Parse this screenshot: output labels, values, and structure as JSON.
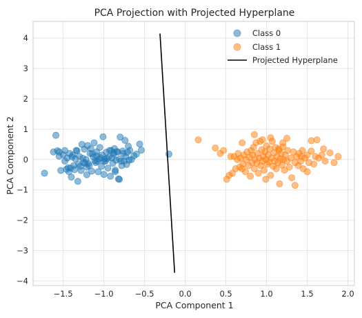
{
  "chart_data": {
    "type": "scatter",
    "title": "PCA Projection with Projected Hyperplane",
    "xlabel": "PCA Component 1",
    "ylabel": "PCA Component 2",
    "xlim": [
      -1.87,
      2.08
    ],
    "ylim": [
      -4.15,
      4.55
    ],
    "xticks": [
      -1.5,
      -1.0,
      -0.5,
      0.0,
      0.5,
      1.0,
      1.5,
      2.0
    ],
    "yticks": [
      -4,
      -3,
      -2,
      -1,
      0,
      1,
      2,
      3,
      4
    ],
    "xtick_labels": [
      "−1.5",
      "−1.0",
      "−0.5",
      "0.0",
      "0.5",
      "1.0",
      "1.5",
      "2.0"
    ],
    "ytick_labels": [
      "−4",
      "−3",
      "−2",
      "−1",
      "0",
      "1",
      "2",
      "3",
      "4"
    ],
    "grid": true,
    "legend_position": "top-right",
    "series": [
      {
        "name": "Class 0",
        "kind": "scatter",
        "color": "#1f77b4",
        "alpha": 0.5,
        "points": [
          [
            -1.73,
            -0.45
          ],
          [
            -1.62,
            0.25
          ],
          [
            -1.59,
            0.8
          ],
          [
            -1.57,
            0.29
          ],
          [
            -1.55,
            0.11
          ],
          [
            -1.53,
            -0.36
          ],
          [
            -1.5,
            0.16
          ],
          [
            -1.48,
            -0.05
          ],
          [
            -1.46,
            -0.32
          ],
          [
            -1.45,
            0.05
          ],
          [
            -1.43,
            -0.4
          ],
          [
            -1.42,
            0.2
          ],
          [
            -1.4,
            -0.58
          ],
          [
            -1.38,
            0.15
          ],
          [
            -1.37,
            -0.2
          ],
          [
            -1.35,
            0.02
          ],
          [
            -1.33,
            0.29
          ],
          [
            -1.32,
            -0.72
          ],
          [
            -1.3,
            0.1
          ],
          [
            -1.28,
            -0.36
          ],
          [
            -1.27,
            0.5
          ],
          [
            -1.25,
            -0.1
          ],
          [
            -1.24,
            0.34
          ],
          [
            -1.22,
            0.0
          ],
          [
            -1.21,
            -0.5
          ],
          [
            -1.2,
            0.46
          ],
          [
            -1.18,
            -0.2
          ],
          [
            -1.17,
            0.2
          ],
          [
            -1.15,
            -0.38
          ],
          [
            -1.13,
            0.09
          ],
          [
            -1.12,
            0.55
          ],
          [
            -1.1,
            -0.1
          ],
          [
            -1.09,
            0.25
          ],
          [
            -1.07,
            -0.4
          ],
          [
            -1.06,
            0.02
          ],
          [
            -1.05,
            0.4
          ],
          [
            -1.03,
            -0.22
          ],
          [
            -1.02,
            0.15
          ],
          [
            -1.0,
            -0.49
          ],
          [
            -0.98,
            -0.05
          ],
          [
            -0.97,
            0.24
          ],
          [
            -0.95,
            -0.28
          ],
          [
            -0.94,
            0.08
          ],
          [
            -0.92,
            -0.55
          ],
          [
            -0.91,
            0.3
          ],
          [
            -0.89,
            -0.12
          ],
          [
            -0.88,
            0.18
          ],
          [
            -0.86,
            -0.35
          ],
          [
            -0.85,
            -0.02
          ],
          [
            -0.83,
            0.25
          ],
          [
            -0.82,
            -0.64
          ],
          [
            -0.81,
            0.02
          ],
          [
            -0.8,
            0.74
          ],
          [
            -0.78,
            -0.2
          ],
          [
            -0.77,
            0.28
          ],
          [
            -0.75,
            -0.05
          ],
          [
            -0.74,
            0.63
          ],
          [
            -0.73,
            0.1
          ],
          [
            -0.72,
            -0.16
          ],
          [
            -0.71,
            0.24
          ],
          [
            -0.7,
            0.44
          ],
          [
            -0.69,
            -0.02
          ],
          [
            -0.68,
            0.3
          ],
          [
            -0.66,
            0.0
          ],
          [
            -0.63,
            0.12
          ],
          [
            -0.6,
            0.18
          ],
          [
            -0.56,
            0.51
          ],
          [
            -0.54,
            0.31
          ],
          [
            -1.55,
            0.25
          ],
          [
            -1.48,
            0.3
          ],
          [
            -1.41,
            -0.28
          ],
          [
            -1.36,
            -0.33
          ],
          [
            -1.29,
            -0.22
          ],
          [
            -1.26,
            0.04
          ],
          [
            -1.19,
            -0.13
          ],
          [
            -1.16,
            0.36
          ],
          [
            -1.11,
            -0.04
          ],
          [
            -1.04,
            0.06
          ],
          [
            -1.01,
            0.75
          ],
          [
            -0.96,
            0.03
          ],
          [
            -0.9,
            0.05
          ],
          [
            -0.87,
            0.36
          ],
          [
            -0.84,
            0.26
          ],
          [
            -0.79,
            -0.05
          ],
          [
            -0.76,
            0.2
          ],
          [
            -1.44,
            -0.27
          ],
          [
            -1.34,
            0.3
          ],
          [
            -1.23,
            -0.12
          ],
          [
            -1.14,
            0.19
          ],
          [
            -1.08,
            -0.05
          ],
          [
            -0.99,
            0.02
          ],
          [
            -0.93,
            0.3
          ],
          [
            -0.86,
            -0.4
          ],
          [
            -1.31,
            -0.15
          ],
          [
            -1.21,
            -0.25
          ],
          [
            -1.09,
            0.12
          ],
          [
            -1.0,
            -0.06
          ],
          [
            -0.88,
            0.22
          ],
          [
            -1.39,
            0.09
          ],
          [
            -0.81,
            -0.65
          ],
          [
            -0.2,
            0.18
          ]
        ]
      },
      {
        "name": "Class 1",
        "kind": "scatter",
        "color": "#ff7f0e",
        "alpha": 0.5,
        "points": [
          [
            0.16,
            0.65
          ],
          [
            0.37,
            0.38
          ],
          [
            0.43,
            0.2
          ],
          [
            0.47,
            0.3
          ],
          [
            0.51,
            -0.65
          ],
          [
            0.54,
            -0.52
          ],
          [
            0.56,
            0.1
          ],
          [
            0.58,
            -0.45
          ],
          [
            0.6,
            0.1
          ],
          [
            0.62,
            -0.3
          ],
          [
            0.64,
            0.0
          ],
          [
            0.65,
            0.2
          ],
          [
            0.67,
            -0.25
          ],
          [
            0.68,
            0.05
          ],
          [
            0.7,
            0.55
          ],
          [
            0.71,
            -0.15
          ],
          [
            0.72,
            0.15
          ],
          [
            0.74,
            -0.4
          ],
          [
            0.75,
            0.0
          ],
          [
            0.76,
            0.25
          ],
          [
            0.78,
            -0.2
          ],
          [
            0.79,
            0.08
          ],
          [
            0.8,
            -0.55
          ],
          [
            0.81,
            0.3
          ],
          [
            0.82,
            -0.1
          ],
          [
            0.83,
            0.15
          ],
          [
            0.84,
            0.4
          ],
          [
            0.85,
            -0.3
          ],
          [
            0.86,
            0.0
          ],
          [
            0.87,
            0.55
          ],
          [
            0.88,
            -0.12
          ],
          [
            0.89,
            0.2
          ],
          [
            0.9,
            -0.45
          ],
          [
            0.91,
            0.05
          ],
          [
            0.92,
            0.6
          ],
          [
            0.93,
            -0.2
          ],
          [
            0.94,
            0.32
          ],
          [
            0.95,
            -0.05
          ],
          [
            0.96,
            0.1
          ],
          [
            0.97,
            -0.35
          ],
          [
            0.98,
            0.25
          ],
          [
            0.99,
            0.0
          ],
          [
            1.0,
            0.45
          ],
          [
            1.01,
            -0.15
          ],
          [
            1.02,
            0.15
          ],
          [
            1.03,
            -0.08
          ],
          [
            1.04,
            0.35
          ],
          [
            1.05,
            -0.52
          ],
          [
            1.06,
            0.05
          ],
          [
            1.07,
            0.6
          ],
          [
            1.08,
            -0.22
          ],
          [
            1.09,
            0.22
          ],
          [
            1.1,
            -0.05
          ],
          [
            1.11,
            0.4
          ],
          [
            1.12,
            -0.3
          ],
          [
            1.13,
            0.1
          ],
          [
            1.14,
            -0.1
          ],
          [
            1.15,
            0.3
          ],
          [
            1.16,
            -0.8
          ],
          [
            1.17,
            0.02
          ],
          [
            1.18,
            0.2
          ],
          [
            1.19,
            -0.18
          ],
          [
            1.2,
            0.42
          ],
          [
            1.21,
            0.0
          ],
          [
            1.22,
            -0.35
          ],
          [
            1.23,
            0.15
          ],
          [
            1.25,
            -0.05
          ],
          [
            1.26,
            0.3
          ],
          [
            1.28,
            -0.25
          ],
          [
            1.3,
            0.05
          ],
          [
            1.31,
            -0.6
          ],
          [
            1.33,
            0.25
          ],
          [
            1.35,
            -0.1
          ],
          [
            1.37,
            0.1
          ],
          [
            1.39,
            -0.2
          ],
          [
            1.4,
            0.2
          ],
          [
            1.42,
            -0.05
          ],
          [
            1.44,
            0.3
          ],
          [
            1.45,
            -0.3
          ],
          [
            1.47,
            0.05
          ],
          [
            1.5,
            0.15
          ],
          [
            1.52,
            -0.1
          ],
          [
            1.55,
            0.28
          ],
          [
            1.58,
            -0.15
          ],
          [
            1.6,
            0.1
          ],
          [
            1.64,
            0.05
          ],
          [
            1.68,
            0.15
          ],
          [
            1.72,
            -0.05
          ],
          [
            1.78,
            0.22
          ],
          [
            1.83,
            -0.1
          ],
          [
            1.88,
            0.1
          ],
          [
            0.85,
            0.82
          ],
          [
            0.95,
            0.65
          ],
          [
            1.05,
            0.72
          ],
          [
            1.2,
            0.55
          ],
          [
            1.35,
            -0.85
          ],
          [
            1.5,
            -0.4
          ],
          [
            1.62,
            0.65
          ],
          [
            1.25,
            0.7
          ],
          [
            0.99,
            -0.65
          ],
          [
            1.55,
            0.62
          ],
          [
            1.7,
            0.35
          ],
          [
            1.43,
            0.1
          ],
          [
            0.7,
            -0.3
          ],
          [
            1.15,
            0.35
          ]
        ]
      },
      {
        "name": "Projected Hyperplane",
        "kind": "line",
        "color": "#000000",
        "points": [
          [
            -0.31,
            4.15
          ],
          [
            -0.13,
            -3.73
          ]
        ]
      }
    ]
  }
}
